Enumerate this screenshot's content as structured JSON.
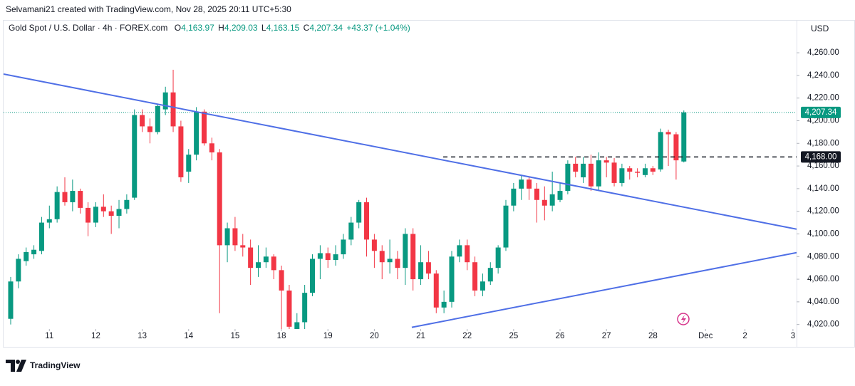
{
  "header": {
    "title": "Selvamani21 created with TradingView.com, Nov 28, 2025 20:11 UTC+5:30"
  },
  "chart_data": {
    "type": "candlestick",
    "title": "Gold Spot / U.S. Dollar · 4h · FOREX.com",
    "legend_values": [
      {
        "label": "O",
        "value": "4,163.97"
      },
      {
        "label": "H",
        "value": "4,209.03"
      },
      {
        "label": "L",
        "value": "4,163.15"
      },
      {
        "label": "C",
        "value": "4,207.34"
      }
    ],
    "change": "+43.37 (+1.04%)",
    "currency": "USD",
    "up_color": "#089981",
    "down_color": "#f23645",
    "open": [
      4025,
      4058,
      4076,
      4082,
      4085,
      4110,
      4113,
      4137,
      4128,
      4138,
      4123,
      4110,
      4124,
      4120,
      4116,
      4122,
      4132,
      4205,
      4195,
      4190,
      4210,
      4225,
      4195,
      4155,
      4170,
      4208,
      4180,
      4172,
      4090,
      4105,
      4090,
      4088,
      4070,
      4075,
      4080,
      4068,
      4050,
      4015,
      4022,
      4048,
      4078,
      4083,
      4077,
      4082,
      4095,
      4110,
      4128,
      4095,
      4085,
      4075,
      4078,
      4070,
      4100,
      4060,
      4075,
      4065,
      4035,
      4040,
      4080,
      4090,
      4075,
      4050,
      4058,
      4070,
      4088,
      4125,
      4140,
      4148,
      4140,
      4130,
      4125,
      4130,
      4138,
      4162,
      4150,
      4162,
      4142,
      4165,
      4163,
      4145,
      4158,
      4155,
      4152,
      4158,
      4157,
      4190,
      4188,
      4163.97
    ],
    "high": [
      4062,
      4082,
      4088,
      4090,
      4115,
      4125,
      4142,
      4150,
      4148,
      4140,
      4128,
      4128,
      4135,
      4125,
      4130,
      4135,
      4210,
      4210,
      4202,
      4215,
      4230,
      4245,
      4200,
      4175,
      4212,
      4210,
      4185,
      4175,
      4110,
      4115,
      4100,
      4095,
      4090,
      4088,
      4082,
      4072,
      4055,
      4030,
      4055,
      4082,
      4090,
      4088,
      4090,
      4100,
      4115,
      4130,
      4132,
      4100,
      4090,
      4095,
      4085,
      4105,
      4105,
      4090,
      4085,
      4068,
      4050,
      4085,
      4095,
      4095,
      4080,
      4065,
      4075,
      4090,
      4130,
      4145,
      4152,
      4150,
      4145,
      4142,
      4155,
      4145,
      4165,
      4168,
      4168,
      4170,
      4172,
      4168,
      4167,
      4162,
      4160,
      4158,
      4162,
      4160,
      4193,
      4192,
      4190,
      4209.03
    ],
    "low": [
      4020,
      4052,
      4072,
      4078,
      4082,
      4105,
      4110,
      4125,
      4120,
      4118,
      4098,
      4106,
      4115,
      4100,
      4105,
      4118,
      4130,
      4190,
      4180,
      4188,
      4205,
      4190,
      4146,
      4145,
      4165,
      4178,
      4165,
      4030,
      4075,
      4085,
      4080,
      4055,
      4062,
      4070,
      4060,
      4015,
      4010,
      4005,
      4016,
      4045,
      4060,
      4070,
      4072,
      4078,
      4090,
      4105,
      4080,
      4070,
      4060,
      4065,
      4060,
      4055,
      4050,
      4055,
      4060,
      4030,
      4030,
      4035,
      4075,
      4068,
      4045,
      4045,
      4055,
      4065,
      4085,
      4120,
      4130,
      4130,
      4110,
      4112,
      4120,
      4128,
      4135,
      4150,
      4145,
      4138,
      4138,
      4150,
      4142,
      4142,
      4148,
      4150,
      4150,
      4152,
      4155,
      4160,
      4148,
      4163.15
    ],
    "close": [
      4058,
      4078,
      4084,
      4086,
      4110,
      4113,
      4137,
      4128,
      4138,
      4123,
      4110,
      4124,
      4120,
      4116,
      4122,
      4130,
      4205,
      4195,
      4190,
      4213,
      4225,
      4195,
      4150,
      4170,
      4208,
      4180,
      4172,
      4090,
      4105,
      4090,
      4088,
      4070,
      4075,
      4080,
      4068,
      4050,
      4018,
      4022,
      4048,
      4078,
      4083,
      4077,
      4082,
      4095,
      4110,
      4128,
      4095,
      4085,
      4075,
      4078,
      4070,
      4100,
      4060,
      4075,
      4065,
      4035,
      4040,
      4080,
      4090,
      4075,
      4050,
      4058,
      4070,
      4088,
      4125,
      4140,
      4148,
      4140,
      4130,
      4125,
      4135,
      4138,
      4162,
      4155,
      4162,
      4142,
      4165,
      4163,
      4145,
      4158,
      4155,
      4154,
      4158,
      4155,
      4190,
      4188,
      4165,
      4207.34
    ],
    "xlim": [
      -0.92,
      101.57
    ],
    "xticks": [
      {
        "value": 5,
        "label": "11"
      },
      {
        "value": 11,
        "label": "12"
      },
      {
        "value": 17,
        "label": "13"
      },
      {
        "value": 23,
        "label": "14"
      },
      {
        "value": 29,
        "label": "15"
      },
      {
        "value": 35,
        "label": "18"
      },
      {
        "value": 41,
        "label": "19"
      },
      {
        "value": 47,
        "label": "20"
      },
      {
        "value": 53,
        "label": "21"
      },
      {
        "value": 59,
        "label": "22"
      },
      {
        "value": 65,
        "label": "25"
      },
      {
        "value": 71,
        "label": "26"
      },
      {
        "value": 77,
        "label": "27"
      },
      {
        "value": 83,
        "label": "28"
      },
      {
        "value": 89.8,
        "label": "Dec"
      },
      {
        "value": 94.9,
        "label": "2"
      },
      {
        "value": 101.1,
        "label": "3"
      }
    ],
    "ylim": [
      4016,
      4289
    ],
    "yticks": [
      {
        "value": 4020,
        "label": "4,020.00"
      },
      {
        "value": 4040,
        "label": "4,040.00"
      },
      {
        "value": 4060,
        "label": "4,060.00"
      },
      {
        "value": 4080,
        "label": "4,080.00"
      },
      {
        "value": 4100,
        "label": "4,100.00"
      },
      {
        "value": 4120,
        "label": "4,120.00"
      },
      {
        "value": 4140,
        "label": "4,140.00"
      },
      {
        "value": 4160,
        "label": "4,160.00"
      },
      {
        "value": 4180,
        "label": "4,180.00"
      },
      {
        "value": 4200,
        "label": "4,200.00"
      },
      {
        "value": 4220,
        "label": "4,220.00"
      },
      {
        "value": 4240,
        "label": "4,240.00"
      },
      {
        "value": 4260,
        "label": "4,260.00"
      }
    ],
    "trendlines": [
      {
        "color": "#4f6fe6",
        "points": [
          [
            -0.92,
            4241.2
          ],
          [
            101.57,
            4104.2
          ]
        ]
      },
      {
        "color": "#4f6fe6",
        "points": [
          [
            51.84,
            4017.5
          ],
          [
            101.57,
            4083.5
          ]
        ]
      }
    ],
    "level_line": {
      "value": 4168,
      "label": "4,168.00",
      "from": 55.9,
      "color": "#131722"
    },
    "price_line": {
      "value": 4207.34,
      "label": "4,207.34",
      "color": "#089981"
    },
    "brand": "TradingView"
  }
}
